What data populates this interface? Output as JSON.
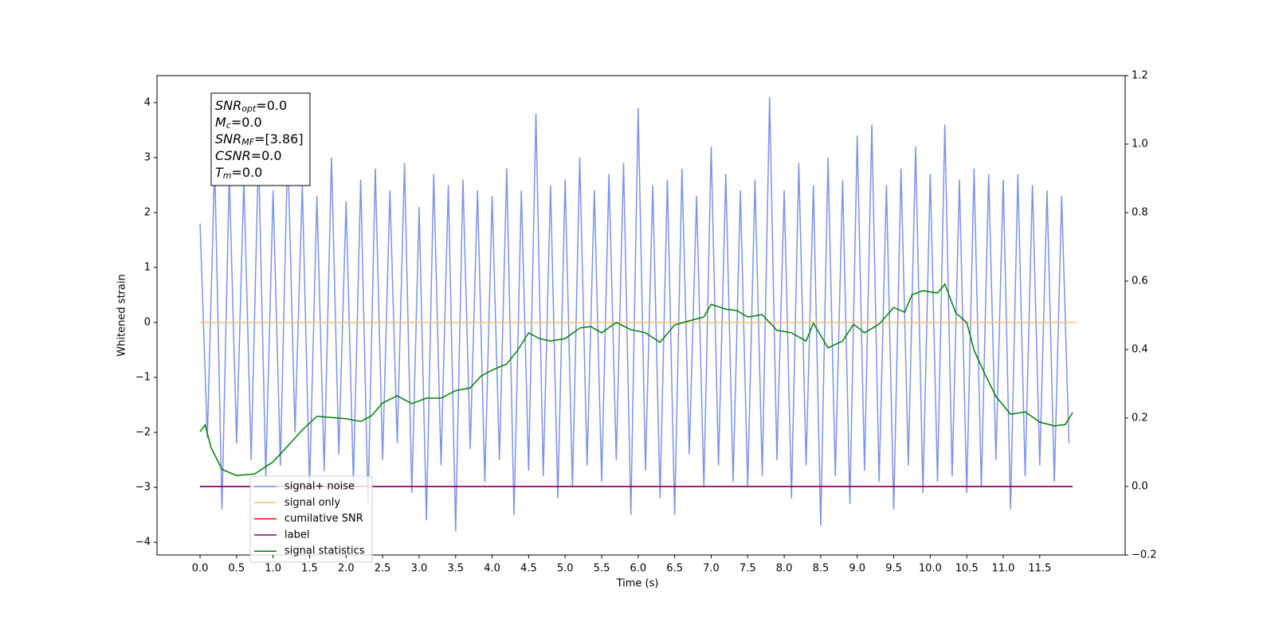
{
  "chart_data": {
    "type": "line",
    "xlabel": "Time (s)",
    "ylabel": "Whitened strain",
    "xlim": [
      -0.59,
      12.67
    ],
    "ylim": [
      -4.23,
      4.49
    ],
    "y2lim": [
      -0.2,
      1.2
    ],
    "xticks": [
      {
        "value": 0,
        "label": "0.0"
      },
      0.5,
      {
        "value": 1,
        "label": "1.0"
      },
      1.5,
      {
        "value": 2,
        "label": "2.0"
      },
      2.5,
      {
        "value": 3,
        "label": "3.0"
      },
      3.5,
      {
        "value": 4,
        "label": "4.0"
      },
      4.5,
      {
        "value": 5,
        "label": "5.0"
      },
      5.5,
      {
        "value": 6,
        "label": "6.0"
      },
      6.5,
      {
        "value": 7,
        "label": "7.0"
      },
      7.5,
      {
        "value": 8,
        "label": "8.0"
      },
      8.5,
      {
        "value": 9,
        "label": "9.0"
      },
      9.5,
      {
        "value": 10,
        "label": "10.0"
      },
      10.5,
      {
        "value": 11,
        "label": "11.0"
      },
      11.5
    ],
    "yticks": [
      {
        "value": -4,
        "label": "−4"
      },
      {
        "value": -3,
        "label": "−3"
      },
      {
        "value": -2,
        "label": "−2"
      },
      {
        "value": -1,
        "label": "−1"
      },
      0,
      1,
      2,
      3,
      4
    ],
    "y2ticks": [
      {
        "value": -0.2,
        "label": "−0.2"
      },
      {
        "value": 0,
        "label": "0.0"
      },
      0.2,
      0.4,
      0.6,
      0.8,
      {
        "value": 1,
        "label": "1.0"
      },
      1.2
    ],
    "annotation": [
      {
        "main": "SNR",
        "sub": "opt",
        "rest": "=0.0"
      },
      {
        "main": "M",
        "sub": "c",
        "rest": "=0.0"
      },
      {
        "main": "SNR",
        "sub": "MF",
        "rest": "=[3.86]"
      },
      {
        "main": "CSNR",
        "rest": "=0.0"
      },
      {
        "main": "T",
        "sub": "m",
        "rest": "=0.0"
      }
    ],
    "series": [
      {
        "name": "signal+ noise",
        "color": "#7b93e6",
        "x": [
          0.0,
          0.1,
          0.2,
          0.3,
          0.4,
          0.5,
          0.6,
          0.7,
          0.8,
          0.9,
          1.0,
          1.1,
          1.2,
          1.3,
          1.4,
          1.5,
          1.6,
          1.7,
          1.8,
          1.9,
          2.0,
          2.1,
          2.2,
          2.3,
          2.4,
          2.5,
          2.6,
          2.7,
          2.8,
          2.9,
          3.0,
          3.1,
          3.2,
          3.3,
          3.4,
          3.5,
          3.6,
          3.7,
          3.8,
          3.9,
          4.0,
          4.1,
          4.2,
          4.3,
          4.4,
          4.5,
          4.6,
          4.7,
          4.8,
          4.9,
          5.0,
          5.1,
          5.2,
          5.3,
          5.4,
          5.5,
          5.6,
          5.7,
          5.8,
          5.9,
          6.0,
          6.1,
          6.2,
          6.3,
          6.4,
          6.5,
          6.6,
          6.7,
          6.8,
          6.9,
          7.0,
          7.1,
          7.2,
          7.3,
          7.4,
          7.5,
          7.6,
          7.7,
          7.8,
          7.9,
          8.0,
          8.1,
          8.2,
          8.3,
          8.4,
          8.5,
          8.6,
          8.7,
          8.8,
          8.9,
          9.0,
          9.1,
          9.2,
          9.3,
          9.4,
          9.5,
          9.6,
          9.7,
          9.8,
          9.9,
          10.0,
          10.1,
          10.2,
          10.3,
          10.4,
          10.5,
          10.6,
          10.7,
          10.8,
          10.9,
          11.0,
          11.1,
          11.2,
          11.3,
          11.4,
          11.5,
          11.6,
          11.7,
          11.8,
          11.9
        ],
        "values": [
          1.8,
          -2.1,
          2.9,
          -3.4,
          2.7,
          -2.2,
          2.6,
          -2.5,
          3.1,
          -2.8,
          2.4,
          -2.6,
          3.2,
          -2.0,
          2.5,
          -3.0,
          2.3,
          -2.7,
          3.0,
          -2.4,
          2.2,
          -2.9,
          2.6,
          -3.3,
          2.8,
          -2.5,
          2.4,
          -2.2,
          2.9,
          -3.1,
          2.1,
          -3.6,
          2.7,
          -2.6,
          2.5,
          -3.8,
          2.6,
          -2.3,
          2.4,
          -2.9,
          2.3,
          -2.5,
          2.8,
          -3.5,
          2.4,
          -2.7,
          3.8,
          -2.8,
          2.5,
          -3.2,
          2.6,
          -3.0,
          3.0,
          -2.6,
          2.4,
          -2.9,
          2.7,
          -2.5,
          2.9,
          -3.5,
          3.9,
          -2.7,
          2.5,
          -3.2,
          2.6,
          -3.5,
          2.8,
          -2.4,
          2.3,
          -3.0,
          3.2,
          -2.6,
          2.7,
          -2.9,
          2.4,
          -3.0,
          2.6,
          -2.8,
          4.1,
          -2.5,
          2.4,
          -3.2,
          2.9,
          -2.6,
          2.5,
          -3.7,
          3.0,
          -2.8,
          2.6,
          -3.3,
          3.4,
          -2.7,
          3.6,
          -2.9,
          2.5,
          -3.4,
          2.8,
          -2.6,
          3.2,
          -3.1,
          2.7,
          -2.9,
          3.6,
          -2.8,
          2.6,
          -3.1,
          2.8,
          -3.0,
          2.7,
          -2.5,
          2.6,
          -3.4,
          2.7,
          -2.8,
          2.5,
          -2.6,
          2.4,
          -2.9,
          2.3,
          -2.2
        ]
      },
      {
        "name": "signal only",
        "color": "#ffbf69",
        "x": [
          0,
          12
        ],
        "values": [
          0,
          0
        ]
      },
      {
        "name": "cumilative SNR",
        "color": "#ff0000",
        "axis": "y2",
        "x": [
          0,
          11.95
        ],
        "values": [
          0,
          0
        ]
      },
      {
        "name": "label",
        "color": "#800080",
        "axis": "y2",
        "x": [
          0,
          11.95
        ],
        "values": [
          0,
          0
        ]
      },
      {
        "name": "signal statistics",
        "color": "#008000",
        "axis": "y2",
        "x": [
          0.0,
          0.07,
          0.15,
          0.3,
          0.5,
          0.75,
          1.0,
          1.2,
          1.4,
          1.6,
          2.0,
          2.2,
          2.35,
          2.5,
          2.7,
          2.9,
          3.1,
          3.3,
          3.5,
          3.7,
          3.85,
          4.0,
          4.2,
          4.35,
          4.5,
          4.65,
          4.8,
          5.0,
          5.2,
          5.35,
          5.5,
          5.7,
          5.9,
          6.1,
          6.3,
          6.5,
          6.7,
          6.9,
          7.0,
          7.2,
          7.35,
          7.5,
          7.7,
          7.9,
          8.1,
          8.3,
          8.4,
          8.6,
          8.8,
          8.95,
          9.1,
          9.3,
          9.5,
          9.65,
          9.75,
          9.9,
          10.1,
          10.2,
          10.35,
          10.5,
          10.6,
          10.75,
          10.9,
          11.1,
          11.3,
          11.5,
          11.7,
          11.85,
          11.95
        ],
        "values": [
          0.16,
          0.18,
          0.114,
          0.05,
          0.032,
          0.037,
          0.072,
          0.118,
          0.165,
          0.205,
          0.198,
          0.19,
          0.207,
          0.244,
          0.265,
          0.242,
          0.258,
          0.258,
          0.28,
          0.288,
          0.323,
          0.34,
          0.358,
          0.398,
          0.449,
          0.432,
          0.425,
          0.432,
          0.463,
          0.467,
          0.449,
          0.479,
          0.458,
          0.449,
          0.421,
          0.472,
          0.484,
          0.495,
          0.532,
          0.518,
          0.514,
          0.495,
          0.502,
          0.456,
          0.449,
          0.425,
          0.477,
          0.405,
          0.425,
          0.474,
          0.449,
          0.474,
          0.523,
          0.509,
          0.56,
          0.572,
          0.565,
          0.591,
          0.507,
          0.479,
          0.398,
          0.328,
          0.263,
          0.211,
          0.218,
          0.188,
          0.177,
          0.181,
          0.216
        ]
      }
    ]
  }
}
